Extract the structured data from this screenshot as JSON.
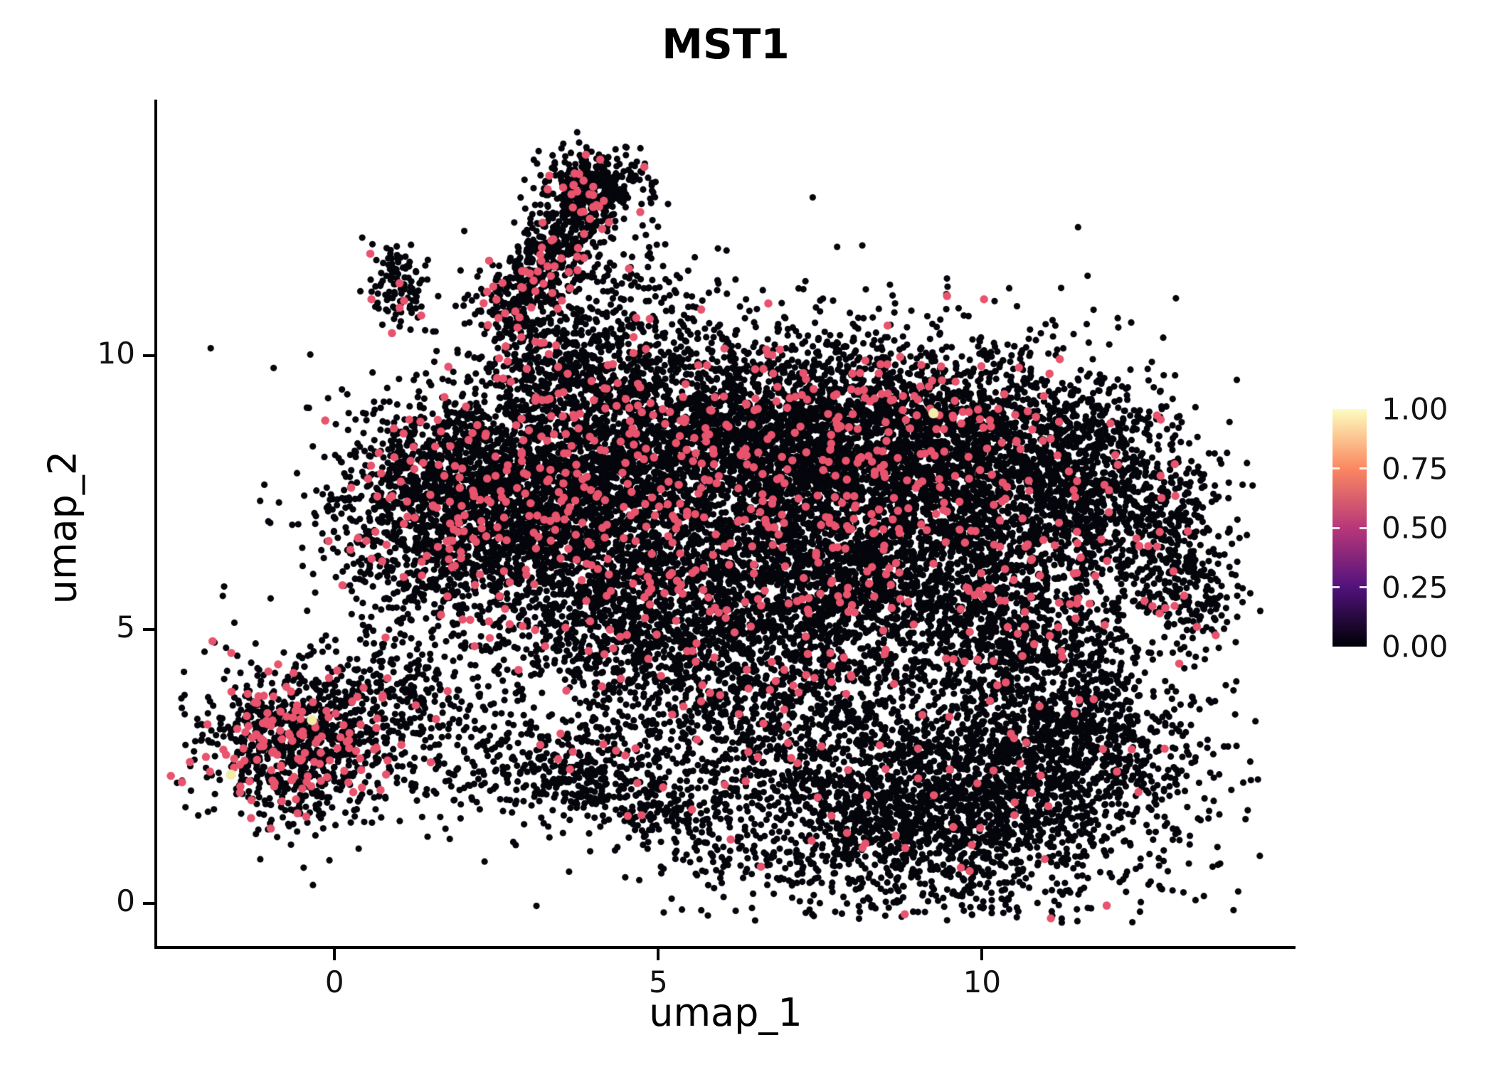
{
  "title": "MST1",
  "chart_data": {
    "type": "scatter",
    "title": "MST1",
    "subtitle": "",
    "xlabel": "umap_1",
    "ylabel": "umap_2",
    "xlim": [
      -2.75,
      14.83
    ],
    "ylim": [
      -0.78,
      14.68
    ],
    "xticks": [
      0,
      5,
      10
    ],
    "yticks": [
      0,
      5,
      10
    ],
    "grid": false,
    "legend_position": "right",
    "point_color_zero": "#05050c",
    "point_color_mid": "#e8536d",
    "point_color_high": "#f2edaa",
    "colorbar": {
      "ticks": [
        "1.00",
        "0.75",
        "0.50",
        "0.25",
        "0.00"
      ],
      "stops": [
        {
          "t": 0.0,
          "color": "#000004"
        },
        {
          "t": 0.25,
          "color": "#51127c"
        },
        {
          "t": 0.5,
          "color": "#b73779"
        },
        {
          "t": 0.75,
          "color": "#fb8861"
        },
        {
          "t": 1.0,
          "color": "#fcfdbf"
        }
      ]
    },
    "seed": 42,
    "clip": {
      "xmin": -2.55,
      "xmax": 14.3,
      "ymin": -0.35,
      "ymax": 14.2
    },
    "clusters": [
      {
        "cx": 3.0,
        "cy": 7.6,
        "sx": 1.3,
        "sy": 1.0,
        "n": 2400,
        "pink": 0.065
      },
      {
        "cx": 6.3,
        "cy": 8.6,
        "sx": 1.5,
        "sy": 0.95,
        "n": 2400,
        "pink": 0.05
      },
      {
        "cx": 9.3,
        "cy": 8.2,
        "sx": 1.5,
        "sy": 1.05,
        "n": 2600,
        "pink": 0.05
      },
      {
        "cx": 11.6,
        "cy": 7.5,
        "sx": 0.9,
        "sy": 0.9,
        "n": 900,
        "pink": 0.03
      },
      {
        "cx": 7.6,
        "cy": 6.0,
        "sx": 1.6,
        "sy": 1.0,
        "n": 2000,
        "pink": 0.05
      },
      {
        "cx": 4.6,
        "cy": 5.6,
        "sx": 1.4,
        "sy": 1.0,
        "n": 1300,
        "pink": 0.06
      },
      {
        "cx": 1.6,
        "cy": 6.9,
        "sx": 0.8,
        "sy": 0.9,
        "n": 700,
        "pink": 0.09
      },
      {
        "cx": 6.2,
        "cy": 3.7,
        "sx": 1.7,
        "sy": 0.9,
        "n": 900,
        "pink": 0.03
      },
      {
        "cx": 9.2,
        "cy": 1.7,
        "sx": 1.7,
        "sy": 0.95,
        "n": 2300,
        "pink": 0.015
      },
      {
        "cx": 11.4,
        "cy": 3.1,
        "sx": 1.0,
        "sy": 0.9,
        "n": 900,
        "pink": 0.01
      },
      {
        "cx": 10.6,
        "cy": 5.0,
        "sx": 0.9,
        "sy": 0.8,
        "n": 700,
        "pink": 0.04
      },
      {
        "cx": -0.55,
        "cy": 2.95,
        "sx": 0.78,
        "sy": 0.72,
        "n": 950,
        "pink": 0.14
      },
      {
        "cx": 1.0,
        "cy": 3.8,
        "sx": 0.8,
        "sy": 0.5,
        "n": 220,
        "pink": 0.05
      },
      {
        "cx": 3.6,
        "cy": 9.9,
        "sx": 0.7,
        "sy": 0.5,
        "n": 420,
        "pink": 0.05
      },
      {
        "cx": 4.0,
        "cy": 13.15,
        "sx": 0.42,
        "sy": 0.3,
        "n": 260,
        "pink": 0.07
      },
      {
        "cx": 0.95,
        "cy": 11.3,
        "sx": 0.28,
        "sy": 0.38,
        "n": 110,
        "pink": 0.09
      },
      {
        "cx": 4.6,
        "cy": 10.9,
        "sx": 0.7,
        "sy": 0.7,
        "n": 160,
        "pink": 0.04
      },
      {
        "cx": 2.4,
        "cy": 2.4,
        "sx": 0.8,
        "sy": 0.55,
        "n": 150,
        "pink": 0.04
      },
      {
        "cx": 7.2,
        "cy": 5.8,
        "sx": 3.1,
        "sy": 2.4,
        "n": 900,
        "pink": 0.03
      }
    ],
    "strips": [
      {
        "x1": 12.9,
        "y1": 7.2,
        "x2": 13.3,
        "y2": 5.2,
        "w": 0.35,
        "n": 300,
        "pink": 0.05
      },
      {
        "x1": 3.0,
        "y1": 2.6,
        "x2": 5.6,
        "y2": 1.4,
        "w": 0.35,
        "n": 330,
        "pink": 0.03
      },
      {
        "x1": 2.6,
        "y1": 10.7,
        "x2": 4.0,
        "y2": 12.9,
        "w": 0.33,
        "n": 620,
        "pink": 0.07
      }
    ],
    "highlight_points": [
      {
        "x": 9.25,
        "y": 8.95
      },
      {
        "x": -0.35,
        "y": 3.35
      },
      {
        "x": -1.6,
        "y": 2.35
      }
    ],
    "point_radius_zero": 4.6,
    "point_radius_mid": 5.8,
    "point_radius_high": 7.2
  }
}
